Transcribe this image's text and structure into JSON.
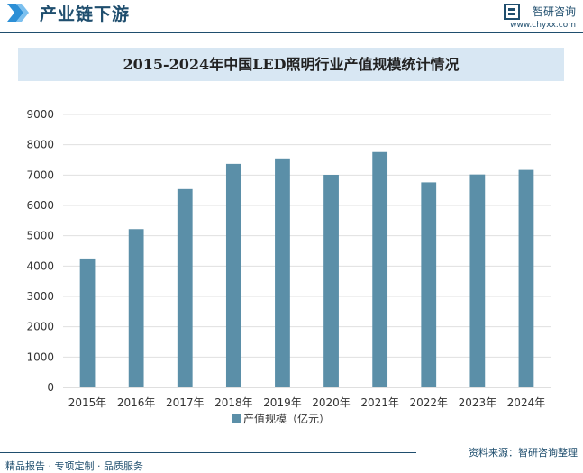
{
  "header": {
    "title": "产业链下游",
    "brand_name": "智研咨询",
    "brand_url": "www.chyxx.com"
  },
  "footer": {
    "left": "精品报告 · 专项定制 · 品质服务",
    "right": "资料来源：智研咨询整理"
  },
  "colors": {
    "bar": "#5b8fa8",
    "brand": "#1f4e6e",
    "title_bg": "#d8e7f3"
  },
  "chart_data": {
    "type": "bar",
    "title": "2015-2024年中国LED照明行业产值规模统计情况",
    "categories": [
      "2015年",
      "2016年",
      "2017年",
      "2018年",
      "2019年",
      "2020年",
      "2021年",
      "2022年",
      "2023年",
      "2024年"
    ],
    "series": [
      {
        "name": "产值规模（亿元）",
        "values": [
          4250,
          5220,
          6540,
          7370,
          7550,
          7010,
          7760,
          6760,
          7020,
          7170
        ]
      }
    ],
    "ylim": [
      0,
      9000
    ],
    "yticks": [
      0,
      1000,
      2000,
      3000,
      4000,
      5000,
      6000,
      7000,
      8000,
      9000
    ],
    "grid": true,
    "legend": "bottom"
  }
}
